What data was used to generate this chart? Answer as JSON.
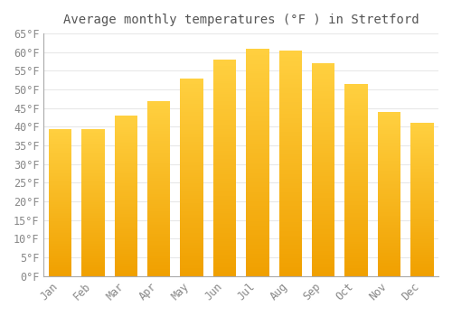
{
  "title": "Average monthly temperatures (°F ) in Stretford",
  "months": [
    "Jan",
    "Feb",
    "Mar",
    "Apr",
    "May",
    "Jun",
    "Jul",
    "Aug",
    "Sep",
    "Oct",
    "Nov",
    "Dec"
  ],
  "values": [
    39.5,
    39.5,
    43.0,
    47.0,
    53.0,
    58.0,
    61.0,
    60.5,
    57.0,
    51.5,
    44.0,
    41.0
  ],
  "bar_color_top": "#FFD040",
  "bar_color_bottom": "#F0A000",
  "background_color": "#FFFFFF",
  "grid_color": "#E8E8E8",
  "text_color": "#888888",
  "title_color": "#555555",
  "ylim": [
    0,
    65
  ],
  "ytick_step": 5,
  "title_fontsize": 10,
  "tick_fontsize": 8.5
}
